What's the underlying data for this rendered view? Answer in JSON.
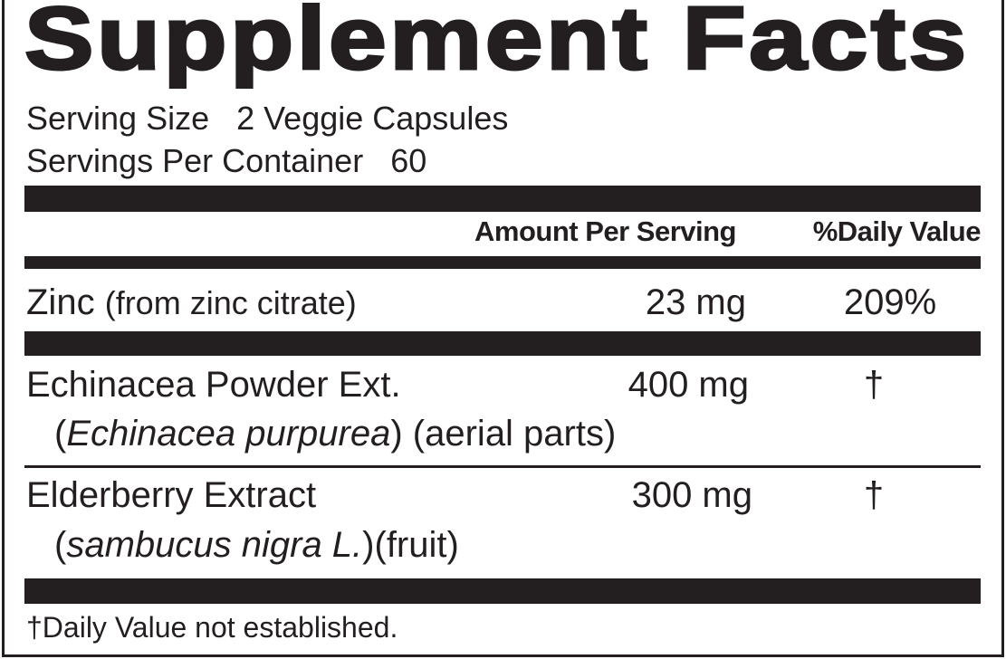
{
  "title": "Supplement Facts",
  "serving_size": {
    "label": "Serving Size",
    "value": "2 Veggie Capsules"
  },
  "servings_per_container": {
    "label": "Servings Per Container",
    "value": "60"
  },
  "header": {
    "amount": "Amount Per Serving",
    "daily_value": "%Daily Value"
  },
  "rows": [
    {
      "name": "Zinc",
      "detail": "(from zinc citrate)",
      "amount": "23 mg",
      "dv": "209%"
    },
    {
      "name": "Echinacea Powder Ext.",
      "sub_open": "(",
      "sub_italic": "Echinacea purpurea",
      "sub_rest": ") (aerial parts)",
      "amount": "400 mg",
      "dv": "†"
    },
    {
      "name": "Elderberry Extract",
      "sub_open": "(",
      "sub_italic": "sambucus nigra L.",
      "sub_rest": ")(fruit)",
      "amount": "300 mg",
      "dv": "†"
    }
  ],
  "footnote": "†Daily Value not established.",
  "colors": {
    "ink": "#231f20",
    "background": "#ffffff"
  }
}
